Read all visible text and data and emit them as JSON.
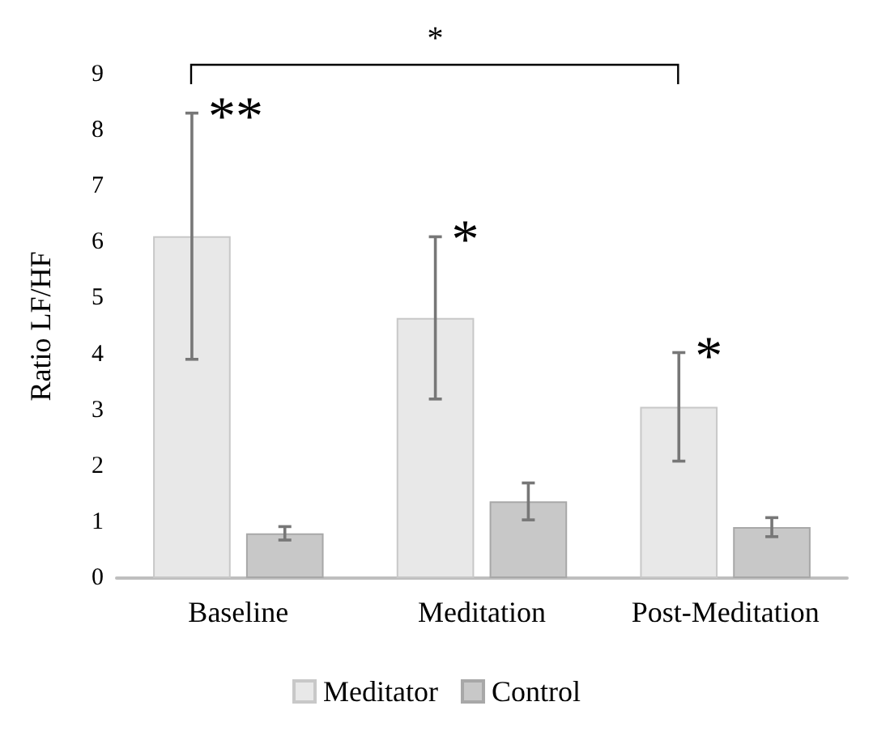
{
  "chart_data": {
    "type": "bar",
    "ylabel": "Ratio LF/HF",
    "categories": [
      "Baseline",
      "Meditation",
      "Post-Meditation"
    ],
    "series": [
      {
        "name": "Meditator",
        "color": "#e8e8e8",
        "values": [
          6.11,
          4.65,
          3.06
        ],
        "errors": [
          2.2,
          1.45,
          0.97
        ]
      },
      {
        "name": "Control",
        "color": "#c8c8c8",
        "values": [
          0.8,
          1.37,
          0.91
        ],
        "errors": [
          0.12,
          0.33,
          0.17
        ]
      }
    ],
    "ylim": [
      0,
      9
    ],
    "yticks": [
      0,
      1,
      2,
      3,
      4,
      5,
      6,
      7,
      8,
      9
    ],
    "grid": false,
    "legend": "bottom",
    "annotations": [
      "**",
      "*",
      "*",
      "*"
    ]
  }
}
